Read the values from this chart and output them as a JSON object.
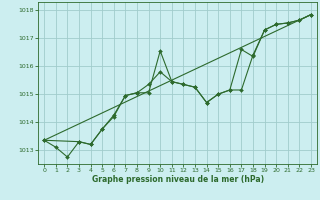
{
  "title": "Graphe pression niveau de la mer (hPa)",
  "background_color": "#cceef0",
  "grid_color": "#a0cccc",
  "line_color": "#2d6a2d",
  "marker_color": "#2d6a2d",
  "xlim": [
    -0.5,
    23.5
  ],
  "ylim": [
    1012.5,
    1018.3
  ],
  "yticks": [
    1013,
    1014,
    1015,
    1016,
    1017,
    1018
  ],
  "xticks": [
    0,
    1,
    2,
    3,
    4,
    5,
    6,
    7,
    8,
    9,
    10,
    11,
    12,
    13,
    14,
    15,
    16,
    17,
    18,
    19,
    20,
    21,
    22,
    23
  ],
  "series1_x": [
    0,
    1,
    2,
    3,
    4,
    5,
    6,
    7,
    8,
    9,
    10,
    11,
    12,
    13,
    14,
    15,
    16,
    17,
    18,
    19,
    20,
    21,
    22,
    23
  ],
  "series1_y": [
    1013.35,
    1013.1,
    1012.75,
    1013.3,
    1013.2,
    1013.75,
    1014.2,
    1014.95,
    1015.05,
    1015.35,
    1015.8,
    1015.45,
    1015.35,
    1015.25,
    1014.7,
    1015.0,
    1015.15,
    1015.15,
    1016.4,
    1017.3,
    1017.5,
    1017.55,
    1017.65,
    1017.85
  ],
  "series2_x": [
    0,
    3,
    4,
    5,
    6,
    7,
    8,
    9,
    10,
    11,
    12,
    13,
    14,
    15,
    16,
    17,
    18,
    19,
    20,
    21,
    22,
    23
  ],
  "series2_y": [
    1013.35,
    1013.3,
    1013.2,
    1013.75,
    1014.25,
    1014.95,
    1015.05,
    1015.05,
    1016.55,
    1015.45,
    1015.35,
    1015.25,
    1014.7,
    1015.0,
    1015.15,
    1016.6,
    1016.35,
    1017.3,
    1017.5,
    1017.55,
    1017.65,
    1017.85
  ],
  "series3_x": [
    0,
    23
  ],
  "series3_y": [
    1013.35,
    1017.85
  ]
}
